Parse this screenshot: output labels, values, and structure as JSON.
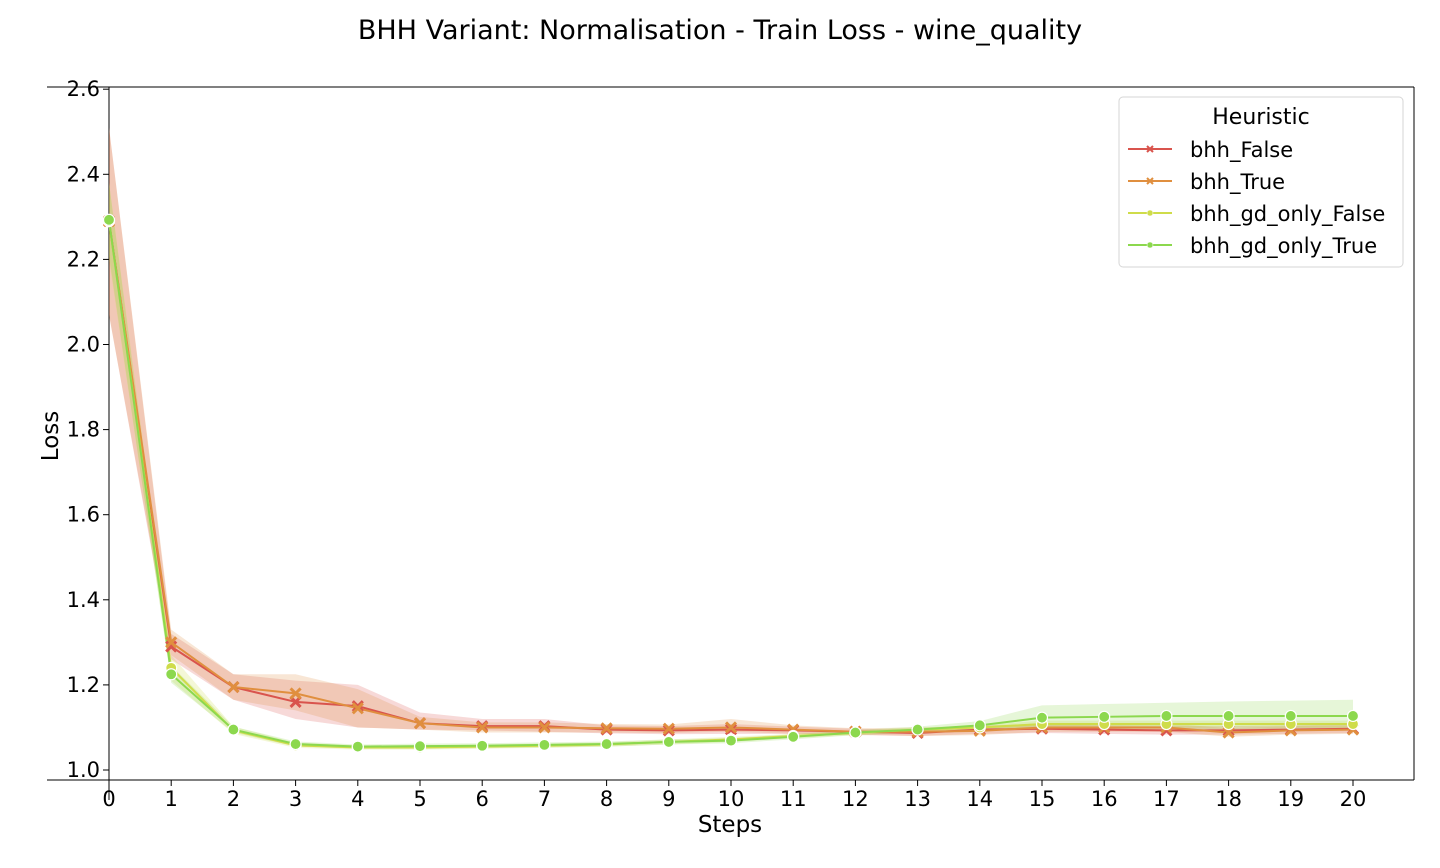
{
  "chart_data": {
    "type": "line",
    "title": "BHH Variant: Normalisation - Train Loss - wine_quality",
    "xlabel": "Steps",
    "ylabel": "Loss",
    "xlim": [
      0,
      21
    ],
    "ylim": [
      0.97,
      2.6
    ],
    "x": [
      0,
      1,
      2,
      3,
      4,
      5,
      6,
      7,
      8,
      9,
      10,
      11,
      12,
      13,
      14,
      15,
      16,
      17,
      18,
      19,
      20
    ],
    "x_ticks": [
      "0",
      "1",
      "2",
      "3",
      "4",
      "5",
      "6",
      "7",
      "8",
      "9",
      "10",
      "11",
      "12",
      "13",
      "14",
      "15",
      "16",
      "17",
      "18",
      "19",
      "20"
    ],
    "y_ticks": [
      "1.0",
      "1.2",
      "1.4",
      "1.6",
      "1.8",
      "2.0",
      "2.2",
      "2.4",
      "2.6"
    ],
    "grid": false,
    "legend": {
      "title": "Heuristic",
      "placement": "top-right"
    },
    "series": [
      {
        "name": "bhh_False",
        "color": "#d9544d",
        "marker": "x",
        "values": [
          2.29,
          1.29,
          1.195,
          1.16,
          1.15,
          1.11,
          1.103,
          1.103,
          1.095,
          1.093,
          1.095,
          1.093,
          1.09,
          1.087,
          1.095,
          1.097,
          1.095,
          1.093,
          1.093,
          1.095,
          1.097
        ],
        "lower": [
          2.07,
          1.26,
          1.165,
          1.12,
          1.1,
          1.095,
          1.093,
          1.09,
          1.086,
          1.084,
          1.085,
          1.085,
          1.083,
          1.08,
          1.085,
          1.087,
          1.085,
          1.083,
          1.083,
          1.085,
          1.087
        ],
        "upper": [
          2.51,
          1.32,
          1.225,
          1.21,
          1.2,
          1.135,
          1.12,
          1.12,
          1.105,
          1.103,
          1.108,
          1.102,
          1.097,
          1.095,
          1.105,
          1.107,
          1.105,
          1.103,
          1.103,
          1.105,
          1.107
        ]
      },
      {
        "name": "bhh_True",
        "color": "#e08f3f",
        "marker": "x",
        "values": [
          2.29,
          1.3,
          1.195,
          1.18,
          1.145,
          1.11,
          1.1,
          1.1,
          1.098,
          1.097,
          1.1,
          1.095,
          1.09,
          1.09,
          1.092,
          1.1,
          1.1,
          1.1,
          1.088,
          1.093,
          1.095
        ],
        "lower": [
          2.07,
          1.27,
          1.165,
          1.14,
          1.1,
          1.095,
          1.088,
          1.088,
          1.088,
          1.087,
          1.09,
          1.085,
          1.082,
          1.08,
          1.082,
          1.09,
          1.09,
          1.09,
          1.078,
          1.083,
          1.085
        ],
        "upper": [
          2.51,
          1.33,
          1.225,
          1.225,
          1.19,
          1.125,
          1.112,
          1.112,
          1.108,
          1.107,
          1.12,
          1.105,
          1.098,
          1.1,
          1.102,
          1.11,
          1.11,
          1.11,
          1.098,
          1.103,
          1.105
        ]
      },
      {
        "name": "bhh_gd_only_False",
        "color": "#cfdc4a",
        "marker": "o",
        "values": [
          2.29,
          1.24,
          1.093,
          1.058,
          1.053,
          1.053,
          1.055,
          1.057,
          1.06,
          1.066,
          1.072,
          1.08,
          1.087,
          1.095,
          1.1,
          1.108,
          1.108,
          1.108,
          1.108,
          1.108,
          1.108
        ],
        "lower": [
          2.2,
          1.21,
          1.085,
          1.052,
          1.048,
          1.048,
          1.05,
          1.052,
          1.055,
          1.06,
          1.066,
          1.075,
          1.082,
          1.09,
          1.095,
          1.1,
          1.1,
          1.1,
          1.1,
          1.1,
          1.1
        ],
        "upper": [
          2.38,
          1.27,
          1.102,
          1.064,
          1.058,
          1.058,
          1.06,
          1.062,
          1.065,
          1.072,
          1.078,
          1.085,
          1.092,
          1.1,
          1.105,
          1.116,
          1.116,
          1.116,
          1.116,
          1.116,
          1.116
        ]
      },
      {
        "name": "bhh_gd_only_True",
        "color": "#8cd84e",
        "marker": "o",
        "values": [
          2.293,
          1.225,
          1.095,
          1.061,
          1.055,
          1.056,
          1.057,
          1.059,
          1.061,
          1.066,
          1.069,
          1.078,
          1.088,
          1.095,
          1.105,
          1.123,
          1.125,
          1.127,
          1.127,
          1.127,
          1.127
        ],
        "lower": [
          2.21,
          1.205,
          1.088,
          1.055,
          1.05,
          1.05,
          1.051,
          1.053,
          1.055,
          1.06,
          1.063,
          1.072,
          1.082,
          1.088,
          1.095,
          1.095,
          1.095,
          1.095,
          1.095,
          1.095,
          1.095
        ],
        "upper": [
          2.38,
          1.245,
          1.102,
          1.067,
          1.06,
          1.062,
          1.063,
          1.065,
          1.067,
          1.072,
          1.075,
          1.084,
          1.094,
          1.102,
          1.115,
          1.152,
          1.155,
          1.158,
          1.161,
          1.163,
          1.165
        ]
      }
    ]
  }
}
